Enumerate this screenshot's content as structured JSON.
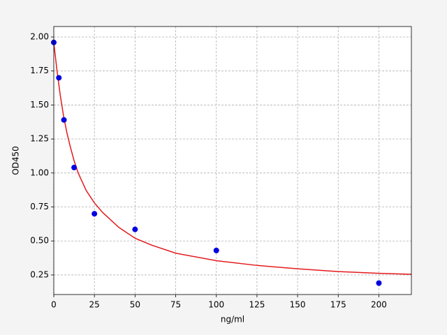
{
  "chart_data": {
    "type": "scatter",
    "x_label": "ng/ml",
    "y_label": "OD450",
    "xlim": [
      0,
      220
    ],
    "ylim": [
      0.106,
      2.077
    ],
    "xticks": [
      0,
      25,
      50,
      75,
      100,
      125,
      150,
      175,
      200
    ],
    "yticks": [
      {
        "value": 0.25,
        "label": "0.25"
      },
      {
        "value": 0.5,
        "label": "0.50"
      },
      {
        "value": 0.75,
        "label": "0.75"
      },
      {
        "value": 1.0,
        "label": "1.00"
      },
      {
        "value": 1.25,
        "label": "1.25"
      },
      {
        "value": 1.5,
        "label": "1.50"
      },
      {
        "value": 1.75,
        "label": "1.75"
      },
      {
        "value": 2.0,
        "label": "2.00"
      }
    ],
    "grid": true,
    "series": [
      {
        "type": "line",
        "color": "#e31a1c",
        "x": [
          0,
          2,
          4,
          6,
          8,
          10,
          12.5,
          15,
          20,
          25,
          30,
          40,
          50,
          60,
          75,
          100,
          125,
          150,
          175,
          200,
          220
        ],
        "values": [
          1.96,
          1.75,
          1.57,
          1.42,
          1.3,
          1.2,
          1.09,
          1.0,
          0.87,
          0.78,
          0.71,
          0.6,
          0.52,
          0.47,
          0.41,
          0.355,
          0.32,
          0.295,
          0.275,
          0.262,
          0.255
        ]
      },
      {
        "type": "scatter",
        "color": "#0000e0",
        "x": [
          0,
          3.125,
          6.25,
          12.5,
          25,
          50,
          100,
          200
        ],
        "values": [
          1.96,
          1.7,
          1.39,
          1.04,
          0.7,
          0.585,
          0.43,
          0.19
        ]
      }
    ]
  }
}
